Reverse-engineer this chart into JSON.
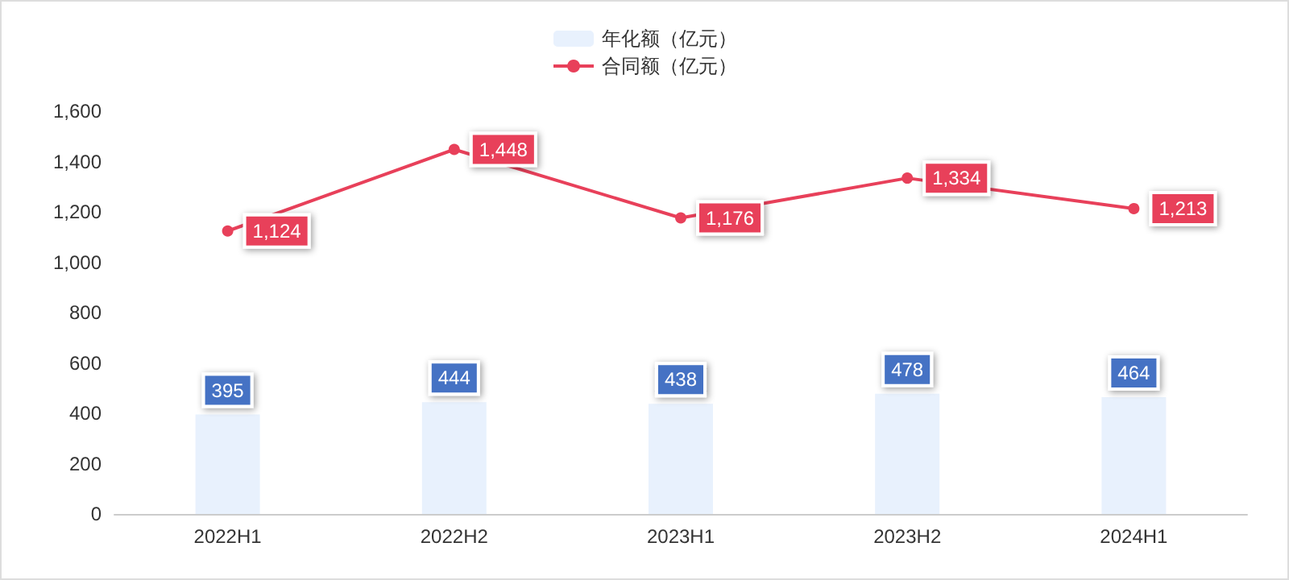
{
  "chart_data": {
    "type": "bar",
    "categories": [
      "2022H1",
      "2022H2",
      "2023H1",
      "2023H2",
      "2024H1"
    ],
    "series": [
      {
        "name": "年化额（亿元）",
        "color": "#e8f1fd",
        "values": [
          395,
          444,
          438,
          478,
          464
        ],
        "value_labels": [
          "395",
          "444",
          "438",
          "478",
          "464"
        ]
      },
      {
        "name": "合同额（亿元）",
        "type": "line",
        "color": "#e8405a",
        "values": [
          1124,
          1448,
          1176,
          1334,
          1213
        ],
        "value_labels": [
          "1,124",
          "1,448",
          "1,176",
          "1,334",
          "1,213"
        ]
      }
    ],
    "ylim": [
      0,
      1600
    ],
    "yticks": [
      {
        "value": 0,
        "label": "0"
      },
      {
        "value": 200,
        "label": "200"
      },
      {
        "value": 400,
        "label": "400"
      },
      {
        "value": 600,
        "label": "600"
      },
      {
        "value": 800,
        "label": "800"
      },
      {
        "value": 1000,
        "label": "1,000"
      },
      {
        "value": 1200,
        "label": "1,200"
      },
      {
        "value": 1400,
        "label": "1,400"
      },
      {
        "value": 1600,
        "label": "1,600"
      }
    ],
    "grid": false,
    "legend": "top",
    "marker": "circle",
    "line_style": "solid"
  }
}
